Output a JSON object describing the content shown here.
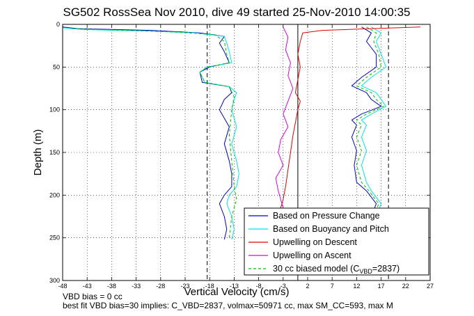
{
  "chart_data": {
    "type": "line",
    "title": "SG502 RossSea Nov 2010, dive 49 started 25-Nov-2010 14:00:35",
    "xlabel": "Vertical Velocity (cm/s)",
    "ylabel": "Depth (m)",
    "xlim": [
      -48,
      27
    ],
    "ylim": [
      0,
      300
    ],
    "y_reversed": true,
    "grid": true,
    "legend_position": "bottom-right",
    "x_ticks": [
      "-48",
      "-43",
      "-38",
      "-33",
      "-28",
      "-23",
      "-18",
      "-13",
      "-8",
      "-3",
      "2",
      "7",
      "12",
      "17",
      "22",
      "27"
    ],
    "y_ticks": [
      "0",
      "50",
      "100",
      "150",
      "200",
      "250",
      "300"
    ],
    "reference_lines": {
      "solid_x": [
        0
      ],
      "dashed_x": [
        -18.5,
        18.5
      ]
    },
    "colors": {
      "pressure": "#0000cc",
      "buoyancy": "#00e5e5",
      "descent": "#e00000",
      "ascent": "#e000e0",
      "model": "#00c000"
    },
    "series": [
      {
        "name": "Based on Pressure Change",
        "color": "#0000cc",
        "segments": [
          {
            "x": [
              -48,
              -45,
              -30,
              -20,
              -15,
              -16,
              -15,
              -14,
              -18,
              -20,
              -19.5,
              -14,
              -13.5,
              -15,
              -16,
              -14,
              -15,
              -14,
              -13.5,
              -13.5,
              -15,
              -16,
              -15,
              -14.5,
              -15
            ],
            "y": [
              3,
              5,
              7,
              10,
              14,
              22,
              32,
              45,
              50,
              56,
              68,
              73,
              80,
              88,
              100,
              120,
              140,
              160,
              175,
              190,
              200,
              210,
              225,
              240,
              252
            ]
          },
          {
            "x": [
              13,
              15,
              14,
              16,
              16,
              13,
              11,
              14,
              15,
              17,
              13,
              11,
              12,
              11,
              12,
              11.5,
              12,
              14,
              16,
              15
            ],
            "y": [
              3,
              10,
              20,
              35,
              50,
              62,
              72,
              80,
              88,
              96,
              105,
              112,
              118,
              132,
              148,
              165,
              185,
              195,
              210,
              225
            ]
          }
        ]
      },
      {
        "name": "Based on Buoyancy and Pitch",
        "color": "#00e5e5",
        "segments": [
          {
            "x": [
              -48,
              -44,
              -30,
              -21,
              -15,
              -14.5,
              -14,
              -13.5,
              -18.5,
              -20,
              -19,
              -14,
              -12.5,
              -13,
              -13.5,
              -12.5,
              -13.5,
              -12.5,
              -12,
              -12.5,
              -14,
              -14.5,
              -13.5,
              -13,
              -13.5
            ],
            "y": [
              4,
              6,
              8,
              10,
              14,
              22,
              32,
              45,
              50,
              56,
              68,
              73,
              80,
              88,
              100,
              120,
              140,
              160,
              175,
              190,
              200,
              210,
              225,
              240,
              252
            ]
          },
          {
            "x": [
              15,
              17,
              16,
              17,
              18,
              15,
              13,
              16,
              17,
              18,
              15,
              13,
              14,
              13,
              14,
              13,
              14,
              15,
              17,
              16
            ],
            "y": [
              3,
              10,
              20,
              35,
              50,
              62,
              72,
              80,
              88,
              96,
              105,
              112,
              118,
              132,
              148,
              165,
              185,
              195,
              210,
              225
            ]
          }
        ]
      },
      {
        "name": "Upwelling on Descent",
        "color": "#e00000",
        "segments": [
          {
            "x": [
              25,
              15,
              5,
              1,
              0.5,
              0,
              0.5,
              0,
              -0.5,
              0.5,
              0,
              -0.5,
              -1,
              -1.5,
              -2,
              -2.5,
              -3,
              -3.5,
              -4
            ],
            "y": [
              3,
              5,
              7,
              10,
              20,
              35,
              50,
              65,
              80,
              90,
              100,
              115,
              130,
              150,
              170,
              190,
              205,
              215,
              225
            ]
          }
        ]
      },
      {
        "name": "Upwelling on Ascent",
        "color": "#e000e0",
        "segments": [
          {
            "x": [
              -3,
              -2,
              -2.5,
              -1.5,
              -2,
              -1,
              -2,
              -3,
              -2,
              -3.5,
              -4,
              -3,
              -4.5,
              -4,
              -3.5,
              -3,
              -4
            ],
            "y": [
              3,
              15,
              30,
              45,
              60,
              75,
              90,
              105,
              120,
              135,
              150,
              165,
              180,
              195,
              205,
              215,
              225
            ]
          }
        ]
      },
      {
        "name": "30 cc biased model (C_VBD=2837)",
        "color": "#00c000",
        "dashed": true,
        "segments": [
          {
            "x": [
              -46,
              -35,
              -25,
              -17,
              -15,
              -14.5,
              -14,
              -18.5,
              -20,
              -19,
              -14,
              -13,
              -13.5,
              -14,
              -13.5,
              -13,
              -12.5,
              -13.5,
              -14
            ],
            "y": [
              5,
              7,
              9,
              12,
              20,
              35,
              45,
              50,
              56,
              68,
              73,
              85,
              100,
              130,
              160,
              190,
              205,
              225,
              250
            ]
          },
          {
            "x": [
              14,
              16,
              15.5,
              16.5,
              17,
              14,
              12,
              15,
              16,
              17.5,
              14,
              12,
              13,
              12,
              13,
              12,
              13,
              14.5,
              16.5,
              15.5
            ],
            "y": [
              3,
              10,
              20,
              35,
              50,
              62,
              72,
              80,
              88,
              96,
              105,
              112,
              118,
              132,
              148,
              165,
              185,
              195,
              210,
              225
            ]
          }
        ]
      }
    ],
    "legend": [
      {
        "label": "Based on Pressure Change",
        "color": "#0000cc",
        "dashed": false
      },
      {
        "label": "Based on Buoyancy and Pitch",
        "color": "#00e5e5",
        "dashed": false
      },
      {
        "label": "Upwelling on Descent",
        "color": "#e00000",
        "dashed": false
      },
      {
        "label": "Upwelling on Ascent",
        "color": "#e000e0",
        "dashed": false
      },
      {
        "label": "30 cc biased model (C",
        "sub": "VBD",
        "label_after": "=2837)",
        "color": "#00c000",
        "dashed": true
      }
    ]
  },
  "footer": {
    "line1": "VBD bias = 0 cc",
    "line2": "best fit VBD bias=30 implies: C_VBD=2837, volmax=50971 cc, max SM_CC=593, max M"
  }
}
